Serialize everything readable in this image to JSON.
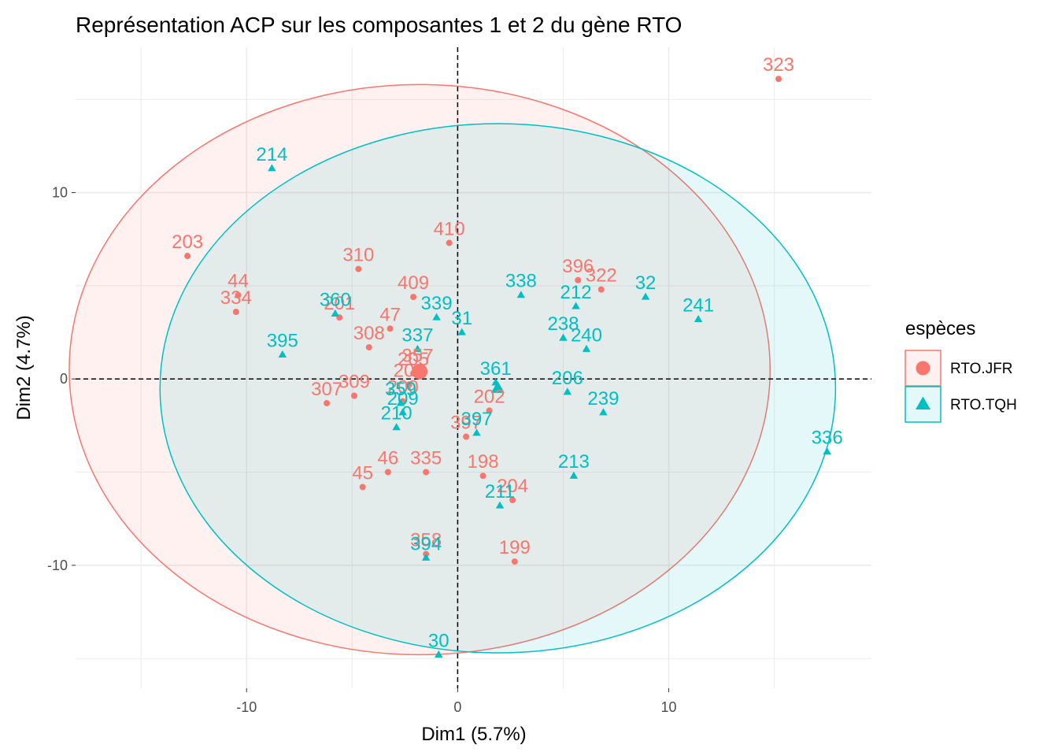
{
  "chart_data": {
    "type": "scatter",
    "title": "Représentation ACP sur les composantes 1 et 2 du gène RTO",
    "xlabel": "Dim1 (5.7%)",
    "ylabel": "Dim2 (4.7%)",
    "xlim": [
      -18.1,
      19.6
    ],
    "ylim": [
      -16.6,
      17.8
    ],
    "x_ticks": [
      -10,
      0,
      10
    ],
    "y_ticks": [
      -10,
      0,
      10
    ],
    "grid": true,
    "reference_lines": {
      "x": 0,
      "y": 0,
      "style": "dashed"
    },
    "legend": {
      "title": "espèces",
      "position": "right"
    },
    "series": [
      {
        "name": "RTO.JFR",
        "color": "#F8766D",
        "marker": "circle",
        "centroid": [
          -1.8,
          0.4
        ],
        "ellipse": {
          "center": [
            -1.8,
            0.5
          ],
          "rx": 16.6,
          "ry": 15.3
        },
        "points": [
          {
            "label": "323",
            "x": 15.2,
            "y": 16.1
          },
          {
            "label": "203",
            "x": -12.8,
            "y": 6.6
          },
          {
            "label": "44",
            "x": -10.4,
            "y": 4.5
          },
          {
            "label": "334",
            "x": -10.5,
            "y": 3.6
          },
          {
            "label": "310",
            "x": -4.7,
            "y": 5.9
          },
          {
            "label": "410",
            "x": -0.4,
            "y": 7.3
          },
          {
            "label": "409",
            "x": -2.1,
            "y": 4.4
          },
          {
            "label": "201",
            "x": -5.6,
            "y": 3.3
          },
          {
            "label": "47",
            "x": -3.2,
            "y": 2.7
          },
          {
            "label": "308",
            "x": -4.2,
            "y": 1.7
          },
          {
            "label": "396",
            "x": 5.7,
            "y": 5.3
          },
          {
            "label": "322",
            "x": 6.8,
            "y": 4.8
          },
          {
            "label": "309",
            "x": -4.9,
            "y": -0.9
          },
          {
            "label": "307",
            "x": -6.2,
            "y": -1.3
          },
          {
            "label": "357",
            "x": -1.9,
            "y": 0.5
          },
          {
            "label": "205",
            "x": -2.1,
            "y": 0.3
          },
          {
            "label": "206",
            "x": -2.3,
            "y": -0.3
          },
          {
            "label": "200",
            "x": -2.6,
            "y": -1.2
          },
          {
            "label": "202",
            "x": 1.5,
            "y": -1.7
          },
          {
            "label": "397",
            "x": 0.4,
            "y": -3.1
          },
          {
            "label": "46",
            "x": -3.3,
            "y": -5.0
          },
          {
            "label": "335",
            "x": -1.5,
            "y": -5.0
          },
          {
            "label": "198",
            "x": 1.2,
            "y": -5.2
          },
          {
            "label": "45",
            "x": -4.5,
            "y": -5.8
          },
          {
            "label": "204",
            "x": 2.6,
            "y": -6.5
          },
          {
            "label": "358",
            "x": -1.5,
            "y": -9.4
          },
          {
            "label": "199",
            "x": 2.7,
            "y": -9.8
          }
        ]
      },
      {
        "name": "RTO.TQH",
        "color": "#00BFC4",
        "marker": "triangle",
        "centroid": [
          1.9,
          -0.5
        ],
        "ellipse": {
          "center": [
            1.9,
            -0.5
          ],
          "rx": 16.0,
          "ry": 14.2
        },
        "points": [
          {
            "label": "214",
            "x": -8.8,
            "y": 11.3
          },
          {
            "label": "395",
            "x": -8.3,
            "y": 1.3
          },
          {
            "label": "360",
            "x": -5.8,
            "y": 3.5
          },
          {
            "label": "339",
            "x": -1.0,
            "y": 3.3
          },
          {
            "label": "31",
            "x": 0.2,
            "y": 2.5
          },
          {
            "label": "337",
            "x": -1.9,
            "y": 1.6
          },
          {
            "label": "338",
            "x": 3.0,
            "y": 4.5
          },
          {
            "label": "212",
            "x": 5.6,
            "y": 3.9
          },
          {
            "label": "32",
            "x": 8.9,
            "y": 4.4
          },
          {
            "label": "241",
            "x": 11.4,
            "y": 3.2
          },
          {
            "label": "238",
            "x": 5.0,
            "y": 2.2
          },
          {
            "label": "240",
            "x": 6.1,
            "y": 1.6
          },
          {
            "label": "361",
            "x": 1.8,
            "y": -0.2
          },
          {
            "label": "206",
            "x": 5.2,
            "y": -0.7
          },
          {
            "label": "239",
            "x": 6.9,
            "y": -1.8
          },
          {
            "label": "359",
            "x": -2.7,
            "y": -1.3
          },
          {
            "label": "209",
            "x": -2.6,
            "y": -1.8
          },
          {
            "label": "210",
            "x": -2.9,
            "y": -2.6
          },
          {
            "label": "397",
            "x": 0.9,
            "y": -2.9
          },
          {
            "label": "336",
            "x": 17.5,
            "y": -3.9
          },
          {
            "label": "213",
            "x": 5.5,
            "y": -5.2
          },
          {
            "label": "211",
            "x": 2.0,
            "y": -6.8
          },
          {
            "label": "394",
            "x": -1.5,
            "y": -9.6
          },
          {
            "label": "30",
            "x": -0.9,
            "y": -14.8
          }
        ]
      }
    ]
  }
}
